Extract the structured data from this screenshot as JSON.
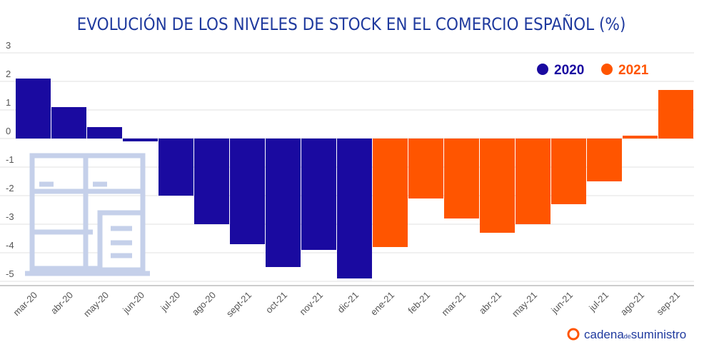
{
  "chart_data": {
    "type": "bar",
    "title": "EVOLUCIÓN DE LOS NIVELES DE STOCK EN EL COMERCIO ESPAÑOL (%)",
    "categories": [
      "mar-20",
      "abr-20",
      "may-20",
      "jun-20",
      "jul-20",
      "ago-20",
      "sept-21",
      "oct-21",
      "nov-21",
      "dic-21",
      "ene-21",
      "feb-21",
      "mar-21",
      "abr-21",
      "may-21",
      "jun-21",
      "jul-21",
      "ago-21",
      "sep-21"
    ],
    "series": [
      {
        "name": "2020",
        "color": "#1a0aa0",
        "values": [
          2.1,
          1.1,
          0.4,
          -0.1,
          -2.0,
          -3.0,
          -3.7,
          -4.5,
          -3.9,
          -4.9,
          null,
          null,
          null,
          null,
          null,
          null,
          null,
          null,
          null
        ]
      },
      {
        "name": "2021",
        "color": "#ff5500",
        "values": [
          null,
          null,
          null,
          null,
          null,
          null,
          null,
          null,
          null,
          null,
          -3.8,
          -2.1,
          -2.8,
          -3.3,
          -3.0,
          -2.3,
          -1.5,
          0.1,
          1.7
        ]
      }
    ],
    "ylim": [
      -5.15,
      3
    ],
    "yticks": [
      -5,
      -4,
      -3,
      -2,
      -1,
      0,
      1,
      2,
      3
    ],
    "grid": true,
    "legend": "top-right"
  },
  "logo": {
    "main": "cadena",
    "small": "de",
    "end": "suministro"
  }
}
